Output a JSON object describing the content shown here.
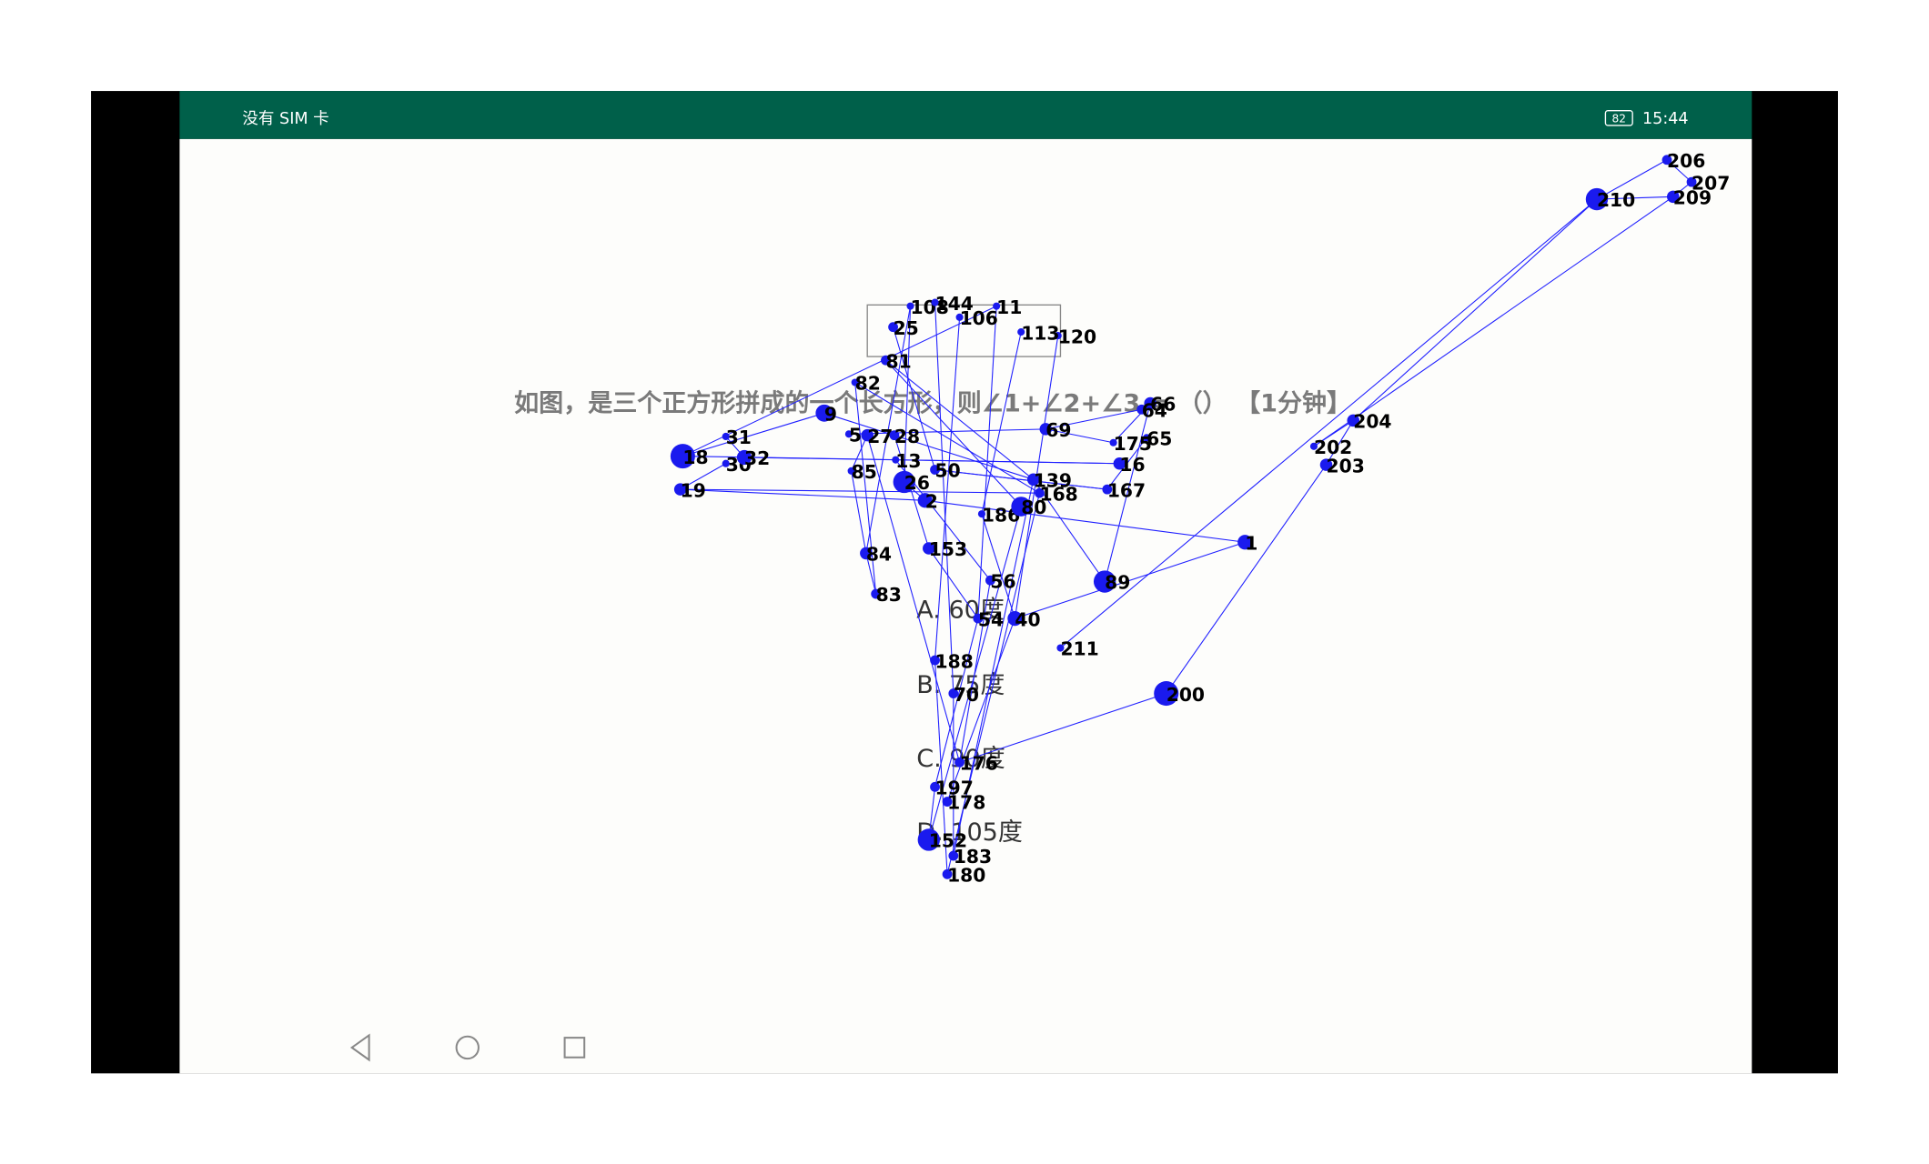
{
  "status_bar": {
    "carrier": "没有 SIM 卡",
    "battery": "82",
    "time": "15:44"
  },
  "question": {
    "text": "如图，是三个正方形拼成的一个长方形，则∠1+∠2+∠3 = （） 【1分钟】",
    "options": [
      "A. 60度",
      "B. 75度",
      "C. 90度",
      "D. 105度"
    ]
  },
  "graph": {
    "nodes": [
      {
        "label": "206"
      },
      {
        "label": "207"
      },
      {
        "label": "209"
      },
      {
        "label": "210"
      },
      {
        "label": "204"
      },
      {
        "label": "202"
      },
      {
        "label": "203"
      },
      {
        "label": "211"
      },
      {
        "label": "200"
      },
      {
        "label": "1"
      },
      {
        "label": "89"
      },
      {
        "label": "66"
      },
      {
        "label": "64"
      },
      {
        "label": "65"
      },
      {
        "label": "175"
      },
      {
        "label": "16"
      },
      {
        "label": "167"
      },
      {
        "label": "69"
      },
      {
        "label": "11"
      },
      {
        "label": "120"
      },
      {
        "label": "113"
      },
      {
        "label": "106"
      },
      {
        "label": "108"
      },
      {
        "label": "144"
      },
      {
        "label": "25"
      },
      {
        "label": "81"
      },
      {
        "label": "82"
      },
      {
        "label": "9"
      },
      {
        "label": "5"
      },
      {
        "label": "27"
      },
      {
        "label": "28"
      },
      {
        "label": "31"
      },
      {
        "label": "18"
      },
      {
        "label": "30"
      },
      {
        "label": "32"
      },
      {
        "label": "19"
      },
      {
        "label": "85"
      },
      {
        "label": "13"
      },
      {
        "label": "26"
      },
      {
        "label": "50"
      },
      {
        "label": "2"
      },
      {
        "label": "186"
      },
      {
        "label": "153"
      },
      {
        "label": "84"
      },
      {
        "label": "83"
      },
      {
        "label": "56"
      },
      {
        "label": "54"
      },
      {
        "label": "40"
      },
      {
        "label": "139"
      },
      {
        "label": "168"
      },
      {
        "label": "80"
      },
      {
        "label": "188"
      },
      {
        "label": "70"
      },
      {
        "label": "176"
      },
      {
        "label": "197"
      },
      {
        "label": "178"
      },
      {
        "label": "183"
      },
      {
        "label": "180"
      },
      {
        "label": "152"
      }
    ]
  }
}
